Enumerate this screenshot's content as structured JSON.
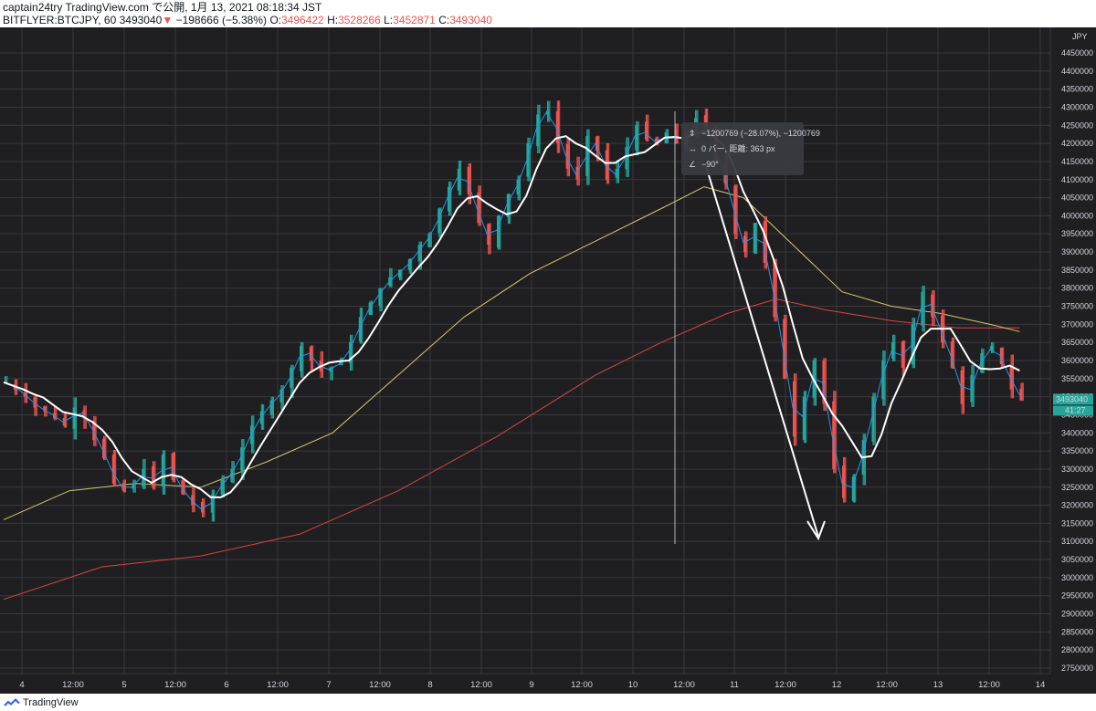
{
  "header": {
    "line1": "captain24try TradingView.com で公開, 1月 13, 2021 08:18:34 JST",
    "symbol": "BITFLYER:BTCJPY, 60",
    "last": "3493040",
    "change_arrow": "▼",
    "change": "−198666 (−5.38%)",
    "o_label": "O:",
    "o": "3496422",
    "h_label": "H:",
    "h": "3528266",
    "l_label": "L:",
    "l": "3452871",
    "c_label": "C:",
    "c": "3493040"
  },
  "price_axis": {
    "currency": "JPY",
    "ticks": [
      "4450000",
      "4400000",
      "4350000",
      "4300000",
      "4250000",
      "4200000",
      "4150000",
      "4100000",
      "4050000",
      "4000000",
      "3950000",
      "3900000",
      "3850000",
      "3800000",
      "3750000",
      "3700000",
      "3650000",
      "3600000",
      "3550000",
      "3500000",
      "3450000",
      "3400000",
      "3350000",
      "3300000",
      "3250000",
      "3200000",
      "3150000",
      "3100000",
      "3050000",
      "3000000",
      "2950000",
      "2900000",
      "2850000",
      "2800000",
      "2750000"
    ],
    "last_price_label": "3493040",
    "countdown_label": "41:27"
  },
  "time_axis": {
    "ticks": [
      "4",
      "12:00",
      "5",
      "12:00",
      "6",
      "12:00",
      "7",
      "12:00",
      "8",
      "12:00",
      "9",
      "12:00",
      "10",
      "12:00",
      "11",
      "12:00",
      "12",
      "12:00",
      "13",
      "12:00",
      "14"
    ]
  },
  "measure_tooltip": {
    "line1": "−1200769 (−28.07%), −1200769",
    "line2": "0 バー, 距離: 363 px",
    "line3": "−90°"
  },
  "footer": {
    "brand": "TradingView"
  },
  "chart_data": {
    "type": "candlestick",
    "symbol": "BITFLYER:BTCJPY",
    "interval": "60",
    "ylim": [
      2725000,
      4475000
    ],
    "last_price": 3493040,
    "x_labels": [
      "4",
      "12:00",
      "5",
      "12:00",
      "6",
      "12:00",
      "7",
      "12:00",
      "8",
      "12:00",
      "9",
      "12:00",
      "10",
      "12:00",
      "11",
      "12:00",
      "12",
      "12:00",
      "13",
      "12:00",
      "14"
    ],
    "close_path": [
      [
        0,
        3540000
      ],
      [
        3,
        3520000
      ],
      [
        6,
        3500000
      ],
      [
        9,
        3470000
      ],
      [
        12,
        3460000
      ],
      [
        15,
        3440000
      ],
      [
        18,
        3420000
      ],
      [
        21,
        3470000
      ],
      [
        24,
        3440000
      ],
      [
        27,
        3380000
      ],
      [
        30,
        3330000
      ],
      [
        33,
        3260000
      ],
      [
        36,
        3240000
      ],
      [
        39,
        3260000
      ],
      [
        42,
        3300000
      ],
      [
        45,
        3250000
      ],
      [
        48,
        3340000
      ],
      [
        51,
        3270000
      ],
      [
        54,
        3230000
      ],
      [
        57,
        3200000
      ],
      [
        60,
        3180000
      ],
      [
        63,
        3230000
      ],
      [
        66,
        3270000
      ],
      [
        69,
        3300000
      ],
      [
        72,
        3360000
      ],
      [
        75,
        3420000
      ],
      [
        78,
        3460000
      ],
      [
        81,
        3490000
      ],
      [
        84,
        3520000
      ],
      [
        87,
        3580000
      ],
      [
        90,
        3640000
      ],
      [
        93,
        3600000
      ],
      [
        96,
        3570000
      ],
      [
        99,
        3580000
      ],
      [
        102,
        3600000
      ],
      [
        105,
        3650000
      ],
      [
        108,
        3720000
      ],
      [
        111,
        3760000
      ],
      [
        114,
        3800000
      ],
      [
        117,
        3830000
      ],
      [
        120,
        3850000
      ],
      [
        123,
        3880000
      ],
      [
        126,
        3920000
      ],
      [
        129,
        3950000
      ],
      [
        132,
        4020000
      ],
      [
        135,
        4080000
      ],
      [
        138,
        4130000
      ],
      [
        141,
        4060000
      ],
      [
        144,
        3980000
      ],
      [
        147,
        3920000
      ],
      [
        150,
        4000000
      ],
      [
        153,
        4060000
      ],
      [
        156,
        4100000
      ],
      [
        159,
        4200000
      ],
      [
        162,
        4280000
      ],
      [
        165,
        4290000
      ],
      [
        168,
        4200000
      ],
      [
        171,
        4130000
      ],
      [
        174,
        4100000
      ],
      [
        177,
        4220000
      ],
      [
        180,
        4180000
      ],
      [
        183,
        4100000
      ],
      [
        186,
        4130000
      ],
      [
        189,
        4190000
      ],
      [
        192,
        4250000
      ],
      [
        195,
        4210000
      ],
      [
        198,
        4200000
      ],
      [
        201,
        4230000
      ],
      [
        204,
        4200000
      ],
      [
        207,
        4230000
      ],
      [
        210,
        4270000
      ],
      [
        213,
        4240000
      ],
      [
        216,
        4150000
      ],
      [
        219,
        4090000
      ],
      [
        222,
        3950000
      ],
      [
        225,
        3900000
      ],
      [
        228,
        3980000
      ],
      [
        231,
        3870000
      ],
      [
        234,
        3720000
      ],
      [
        237,
        3550000
      ],
      [
        240,
        3390000
      ],
      [
        243,
        3500000
      ],
      [
        246,
        3600000
      ],
      [
        249,
        3480000
      ],
      [
        252,
        3300000
      ],
      [
        255,
        3220000
      ],
      [
        258,
        3280000
      ],
      [
        261,
        3380000
      ],
      [
        264,
        3500000
      ],
      [
        267,
        3600000
      ],
      [
        270,
        3650000
      ],
      [
        273,
        3580000
      ],
      [
        276,
        3700000
      ],
      [
        279,
        3790000
      ],
      [
        282,
        3720000
      ],
      [
        285,
        3650000
      ],
      [
        288,
        3580000
      ],
      [
        291,
        3480000
      ],
      [
        294,
        3560000
      ],
      [
        297,
        3620000
      ],
      [
        300,
        3640000
      ],
      [
        303,
        3590000
      ],
      [
        306,
        3520000
      ],
      [
        309,
        3490000
      ]
    ],
    "series": [
      {
        "name": "",
        "color": "#ffffff",
        "type": "ma"
      },
      {
        "name": "",
        "color": "#2196f3",
        "type": "ma"
      },
      {
        "name": "",
        "color": "#d6c96a",
        "type": "ma"
      },
      {
        "name": "",
        "color": "#d6453d",
        "type": "ma"
      }
    ],
    "grid": true,
    "colors": {
      "up": "#26a69a",
      "down": "#ef5350",
      "background": "#1f1f22",
      "grid": "#3a3a3e"
    }
  }
}
